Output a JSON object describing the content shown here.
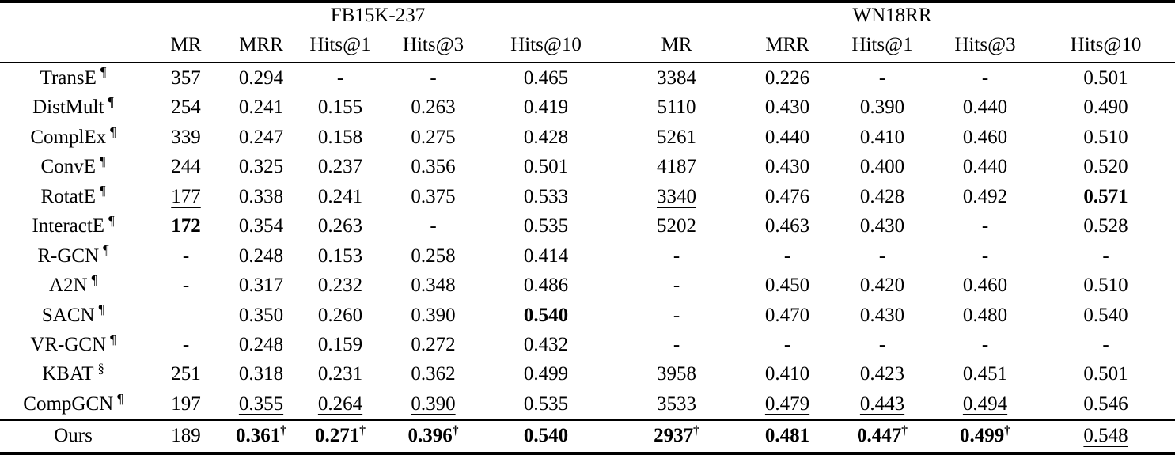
{
  "table": {
    "groups": [
      {
        "label": "FB15K-237"
      },
      {
        "label": "WN18RR"
      }
    ],
    "columns": [
      "MR",
      "MRR",
      "Hits@1",
      "Hits@3",
      "Hits@10",
      "MR",
      "MRR",
      "Hits@1",
      "Hits@3",
      "Hits@10"
    ],
    "marks": {
      "pilcrow": "¶",
      "section": "§",
      "dagger": "†"
    },
    "rows": [
      {
        "model": "TransE",
        "sup": "¶",
        "cells": [
          {
            "t": "357"
          },
          {
            "t": "0.294"
          },
          {
            "t": "-"
          },
          {
            "t": "-"
          },
          {
            "t": "0.465"
          },
          {
            "t": "3384"
          },
          {
            "t": "0.226"
          },
          {
            "t": "-"
          },
          {
            "t": "-"
          },
          {
            "t": "0.501"
          }
        ]
      },
      {
        "model": "DistMult",
        "sup": "¶",
        "cells": [
          {
            "t": "254"
          },
          {
            "t": "0.241"
          },
          {
            "t": "0.155"
          },
          {
            "t": "0.263"
          },
          {
            "t": "0.419"
          },
          {
            "t": "5110"
          },
          {
            "t": "0.430"
          },
          {
            "t": "0.390"
          },
          {
            "t": "0.440"
          },
          {
            "t": "0.490"
          }
        ]
      },
      {
        "model": "ComplEx",
        "sup": "¶",
        "cells": [
          {
            "t": "339"
          },
          {
            "t": "0.247"
          },
          {
            "t": "0.158"
          },
          {
            "t": "0.275"
          },
          {
            "t": "0.428"
          },
          {
            "t": "5261"
          },
          {
            "t": "0.440"
          },
          {
            "t": "0.410"
          },
          {
            "t": "0.460"
          },
          {
            "t": "0.510"
          }
        ]
      },
      {
        "model": "ConvE",
        "sup": "¶",
        "cells": [
          {
            "t": "244"
          },
          {
            "t": "0.325"
          },
          {
            "t": "0.237"
          },
          {
            "t": "0.356"
          },
          {
            "t": "0.501"
          },
          {
            "t": "4187"
          },
          {
            "t": "0.430"
          },
          {
            "t": "0.400"
          },
          {
            "t": "0.440"
          },
          {
            "t": "0.520"
          }
        ]
      },
      {
        "model": "RotatE",
        "sup": "¶",
        "cells": [
          {
            "t": "177",
            "u": true
          },
          {
            "t": "0.338"
          },
          {
            "t": "0.241"
          },
          {
            "t": "0.375"
          },
          {
            "t": "0.533"
          },
          {
            "t": "3340",
            "u": true
          },
          {
            "t": "0.476"
          },
          {
            "t": "0.428"
          },
          {
            "t": "0.492"
          },
          {
            "t": "0.571",
            "b": true
          }
        ]
      },
      {
        "model": "InteractE",
        "sup": "¶",
        "cells": [
          {
            "t": "172",
            "b": true
          },
          {
            "t": "0.354"
          },
          {
            "t": "0.263"
          },
          {
            "t": "-"
          },
          {
            "t": "0.535"
          },
          {
            "t": "5202"
          },
          {
            "t": "0.463"
          },
          {
            "t": "0.430"
          },
          {
            "t": "-"
          },
          {
            "t": "0.528"
          }
        ]
      },
      {
        "model": "R-GCN",
        "sup": "¶",
        "cells": [
          {
            "t": "-"
          },
          {
            "t": "0.248"
          },
          {
            "t": "0.153"
          },
          {
            "t": "0.258"
          },
          {
            "t": "0.414"
          },
          {
            "t": "-"
          },
          {
            "t": "-"
          },
          {
            "t": "-"
          },
          {
            "t": "-"
          },
          {
            "t": "-"
          }
        ]
      },
      {
        "model": "A2N",
        "sup": "¶",
        "cells": [
          {
            "t": "-"
          },
          {
            "t": "0.317"
          },
          {
            "t": "0.232"
          },
          {
            "t": "0.348"
          },
          {
            "t": "0.486"
          },
          {
            "t": "-"
          },
          {
            "t": "0.450"
          },
          {
            "t": "0.420"
          },
          {
            "t": "0.460"
          },
          {
            "t": "0.510"
          }
        ]
      },
      {
        "model": "SACN",
        "sup": "¶",
        "cells": [
          {
            "t": ""
          },
          {
            "t": "0.350"
          },
          {
            "t": "0.260"
          },
          {
            "t": "0.390"
          },
          {
            "t": "0.540",
            "b": true
          },
          {
            "t": "-"
          },
          {
            "t": "0.470"
          },
          {
            "t": "0.430"
          },
          {
            "t": "0.480"
          },
          {
            "t": "0.540"
          }
        ]
      },
      {
        "model": "VR-GCN",
        "sup": "¶",
        "cells": [
          {
            "t": "-"
          },
          {
            "t": "0.248"
          },
          {
            "t": "0.159"
          },
          {
            "t": "0.272"
          },
          {
            "t": "0.432"
          },
          {
            "t": "-"
          },
          {
            "t": "-"
          },
          {
            "t": "-"
          },
          {
            "t": "-"
          },
          {
            "t": "-"
          }
        ]
      },
      {
        "model": "KBAT",
        "sup": "§",
        "cells": [
          {
            "t": "251"
          },
          {
            "t": "0.318"
          },
          {
            "t": "0.231"
          },
          {
            "t": "0.362"
          },
          {
            "t": "0.499"
          },
          {
            "t": "3958"
          },
          {
            "t": "0.410"
          },
          {
            "t": "0.423"
          },
          {
            "t": "0.451"
          },
          {
            "t": "0.501"
          }
        ]
      },
      {
        "model": "CompGCN",
        "sup": "¶",
        "cells": [
          {
            "t": "197"
          },
          {
            "t": "0.355",
            "u": true
          },
          {
            "t": "0.264",
            "u": true
          },
          {
            "t": "0.390",
            "u": true
          },
          {
            "t": "0.535"
          },
          {
            "t": "3533"
          },
          {
            "t": "0.479",
            "u": true
          },
          {
            "t": "0.443",
            "u": true
          },
          {
            "t": "0.494",
            "u": true
          },
          {
            "t": "0.546"
          }
        ]
      },
      {
        "model": "Ours",
        "sup": "",
        "cells": [
          {
            "t": "189"
          },
          {
            "t": "0.361",
            "b": true,
            "d": true
          },
          {
            "t": "0.271",
            "b": true,
            "d": true
          },
          {
            "t": "0.396",
            "b": true,
            "d": true
          },
          {
            "t": "0.540",
            "b": true
          },
          {
            "t": "2937",
            "b": true,
            "d": true
          },
          {
            "t": "0.481",
            "b": true
          },
          {
            "t": "0.447",
            "b": true,
            "d": true
          },
          {
            "t": "0.499",
            "b": true,
            "d": true
          },
          {
            "t": "0.548",
            "u": true
          }
        ]
      }
    ]
  }
}
